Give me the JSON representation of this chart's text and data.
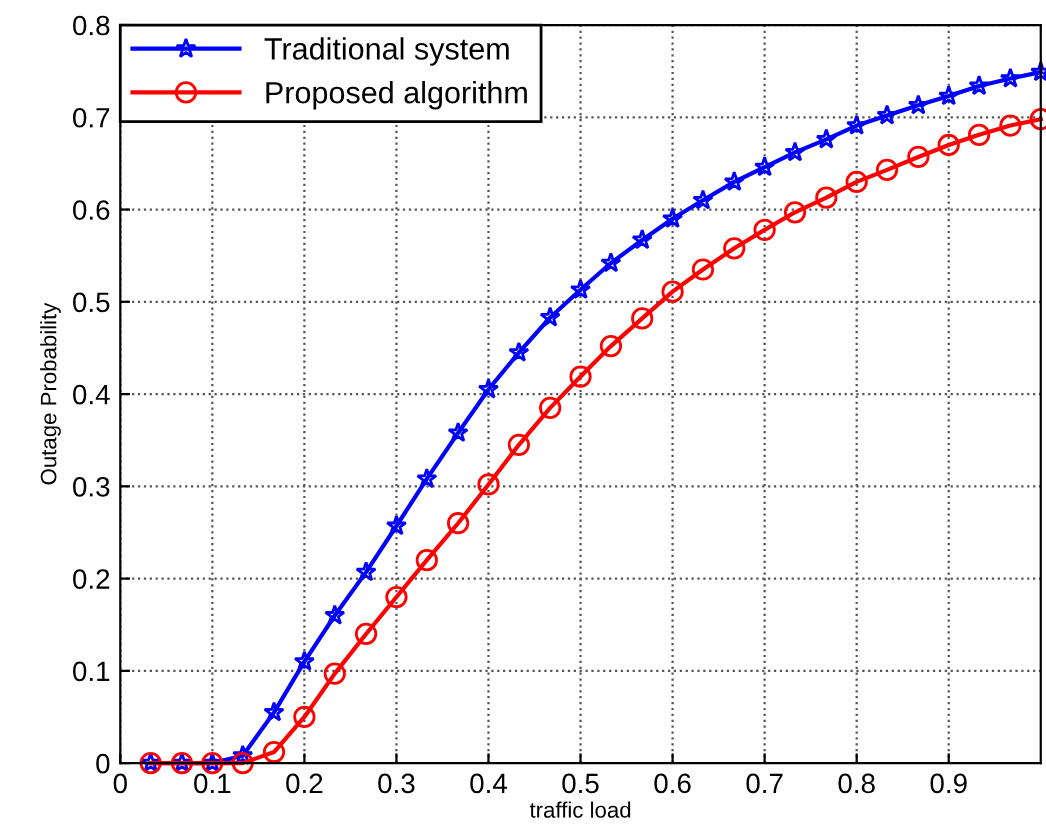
{
  "chart_data": {
    "type": "line",
    "xlabel": "traffic load",
    "ylabel": "Outage Probability",
    "x": [
      0.033,
      0.067,
      0.1,
      0.133,
      0.167,
      0.2,
      0.233,
      0.267,
      0.3,
      0.333,
      0.367,
      0.4,
      0.433,
      0.467,
      0.5,
      0.533,
      0.567,
      0.6,
      0.633,
      0.667,
      0.7,
      0.733,
      0.767,
      0.8,
      0.833,
      0.867,
      0.9,
      0.933,
      0.967,
      1.0
    ],
    "series": [
      {
        "name": "Traditional system",
        "color": "#0000ff",
        "marker": "star",
        "values": [
          0,
          0,
          0,
          0.008,
          0.055,
          0.11,
          0.16,
          0.207,
          0.257,
          0.308,
          0.358,
          0.405,
          0.445,
          0.483,
          0.513,
          0.542,
          0.567,
          0.59,
          0.61,
          0.63,
          0.646,
          0.662,
          0.676,
          0.691,
          0.702,
          0.713,
          0.723,
          0.734,
          0.742,
          0.749
        ]
      },
      {
        "name": "Proposed algorithm",
        "color": "#ff0000",
        "marker": "circle",
        "values": [
          0,
          0,
          0,
          0,
          0.012,
          0.05,
          0.097,
          0.14,
          0.18,
          0.22,
          0.26,
          0.302,
          0.345,
          0.385,
          0.419,
          0.452,
          0.482,
          0.511,
          0.535,
          0.558,
          0.578,
          0.597,
          0.613,
          0.63,
          0.643,
          0.657,
          0.67,
          0.681,
          0.691,
          0.698
        ]
      }
    ],
    "xlim": [
      0,
      1
    ],
    "xticks": [
      0,
      0.1,
      0.2,
      0.3,
      0.4,
      0.5,
      0.6,
      0.7,
      0.8,
      0.9
    ],
    "ylim": [
      0,
      0.8
    ],
    "yticks": [
      0,
      0.1,
      0.2,
      0.3,
      0.4,
      0.5,
      0.6,
      0.7,
      0.8
    ],
    "grid": true,
    "legend": "top left",
    "line_style": "solid"
  }
}
